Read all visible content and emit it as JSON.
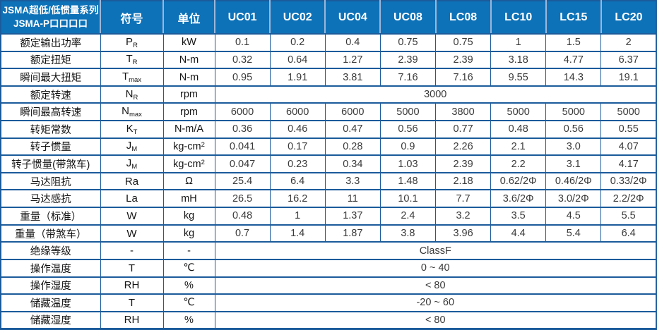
{
  "table_title": {
    "line1": "JSMA超低/低惯量系列",
    "line2": "JSMA-P口口口口"
  },
  "columns": {
    "symbol": "符号",
    "unit": "单位",
    "models": [
      "UC01",
      "UC02",
      "UC04",
      "UC08",
      "LC08",
      "LC10",
      "LC15",
      "LC20"
    ]
  },
  "rows": [
    {
      "label": "额定输出功率",
      "sym": "P",
      "sub": "R",
      "unit": "kW",
      "values": [
        "0.1",
        "0.2",
        "0.4",
        "0.75",
        "0.75",
        "1",
        "1.5",
        "2"
      ]
    },
    {
      "label": "额定扭矩",
      "sym": "T",
      "sub": "R",
      "unit": "N-m",
      "values": [
        "0.32",
        "0.64",
        "1.27",
        "2.39",
        "2.39",
        "3.18",
        "4.77",
        "6.37"
      ]
    },
    {
      "label": "瞬间最大扭矩",
      "sym": "T",
      "sub": "max",
      "unit": "N-m",
      "values": [
        "0.95",
        "1.91",
        "3.81",
        "7.16",
        "7.16",
        "9.55",
        "14.3",
        "19.1"
      ]
    },
    {
      "label": "额定转速",
      "sym": "N",
      "sub": "R",
      "unit": "rpm",
      "merged": "3000"
    },
    {
      "label": "瞬间最高转速",
      "sym": "N",
      "sub": "max",
      "unit": "rpm",
      "values": [
        "6000",
        "6000",
        "6000",
        "5000",
        "3800",
        "5000",
        "5000",
        "5000"
      ]
    },
    {
      "label": "转矩常数",
      "sym": "K",
      "sub": "T",
      "unit": "N-m/A",
      "values": [
        "0.36",
        "0.46",
        "0.47",
        "0.56",
        "0.77",
        "0.48",
        "0.56",
        "0.55"
      ]
    },
    {
      "label": "转子惯量",
      "sym": "J",
      "sub": "M",
      "unit": "kg-cm",
      "unit_sup": "2",
      "values": [
        "0.041",
        "0.17",
        "0.28",
        "0.9",
        "2.26",
        "2.1",
        "3.0",
        "4.07"
      ]
    },
    {
      "label": "转子惯量(带煞车)",
      "sym": "J",
      "sub": "M",
      "unit": "kg-cm",
      "unit_sup": "2",
      "values": [
        "0.047",
        "0.23",
        "0.34",
        "1.03",
        "2.39",
        "2.2",
        "3.1",
        "4.17"
      ]
    },
    {
      "label": "马达阻抗",
      "sym": "Ra",
      "unit": "Ω",
      "values": [
        "25.4",
        "6.4",
        "3.3",
        "1.48",
        "2.18",
        "0.62/2Φ",
        "0.46/2Φ",
        "0.33/2Φ"
      ]
    },
    {
      "label": "马达感抗",
      "sym": "La",
      "unit": "mH",
      "values": [
        "26.5",
        "16.2",
        "11",
        "10.1",
        "7.7",
        "3.6/2Φ",
        "3.0/2Φ",
        "2.2/2Φ"
      ]
    },
    {
      "label": "重量（标准）",
      "sym": "W",
      "unit": "kg",
      "values": [
        "0.48",
        "1",
        "1.37",
        "2.4",
        "3.2",
        "3.5",
        "4.5",
        "5.5"
      ]
    },
    {
      "label": "重量（带煞车）",
      "sym": "W",
      "unit": "kg",
      "values": [
        "0.7",
        "1.4",
        "1.87",
        "3.8",
        "3.96",
        "4.4",
        "5.4",
        "6.4"
      ]
    },
    {
      "label": "绝缘等级",
      "sym": "-",
      "unit": "-",
      "merged": "ClassF"
    },
    {
      "label": "操作温度",
      "sym": "T",
      "unit": "℃",
      "merged": "0 ~ 40"
    },
    {
      "label": "操作湿度",
      "sym": "RH",
      "unit": "%",
      "merged": "< 80"
    },
    {
      "label": "储藏温度",
      "sym": "T",
      "unit": "℃",
      "merged": "-20 ~ 60"
    },
    {
      "label": "储藏湿度",
      "sym": "RH",
      "unit": "%",
      "merged": "< 80"
    }
  ],
  "colors": {
    "header_bg": "#0e72b8",
    "header_text": "#ffffff",
    "border_dark": "#1b5b9b",
    "header_sep": "#9db6d8",
    "label_text": "#141414",
    "value_text": "#3a3a3a"
  }
}
